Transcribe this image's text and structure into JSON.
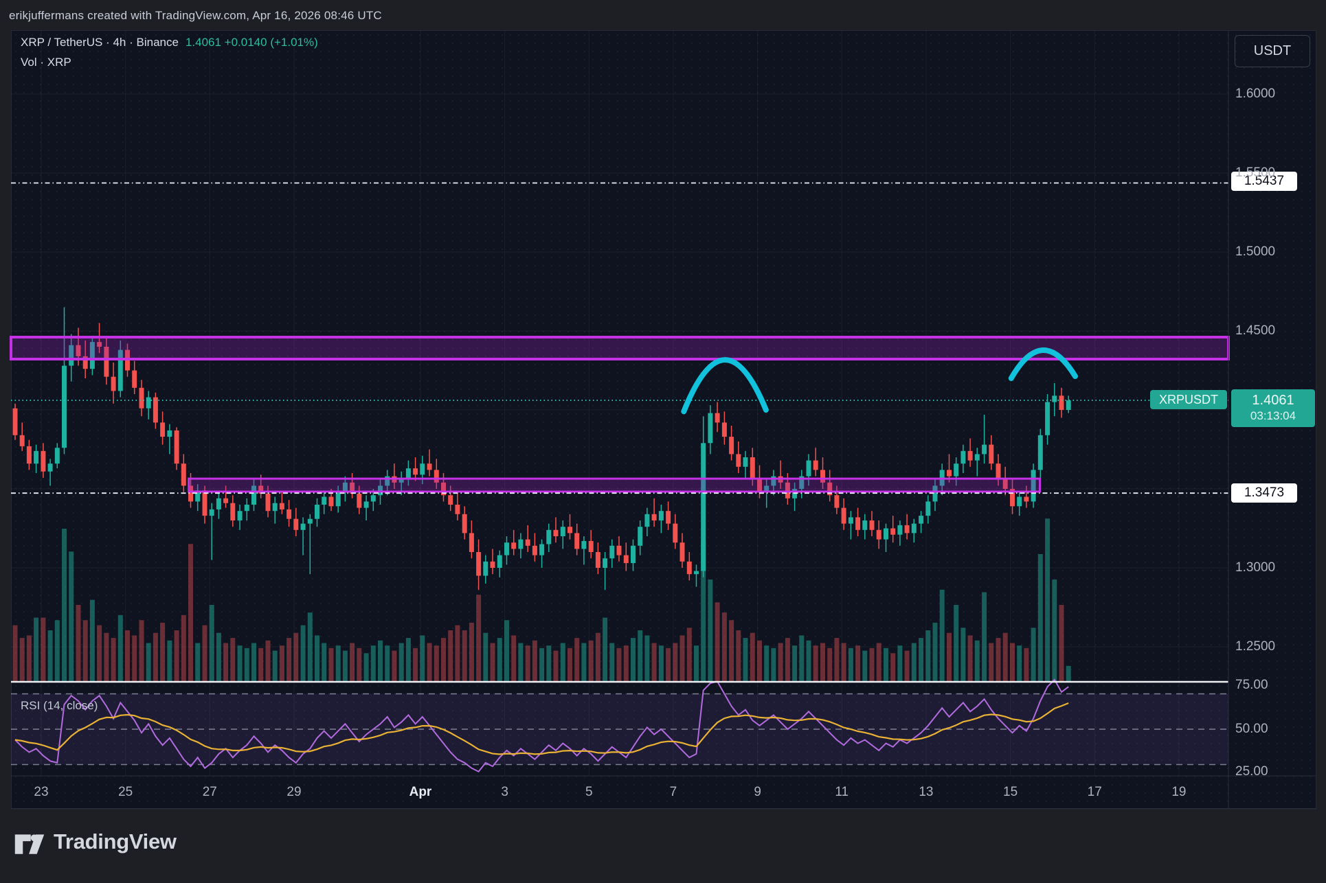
{
  "attribution": "erikjuffermans created with TradingView.com, Apr 16, 2026 08:46 UTC",
  "header": {
    "symbol_line": "XRP / TetherUS · 4h · Binance",
    "price": "1.4061",
    "change": "+0.0140 (+1.01%)",
    "indicator_line": "Vol · XRP"
  },
  "axis": {
    "currency_button": "USDT",
    "price_ticks": [
      [
        "1.6000",
        1.6
      ],
      [
        "1.5500",
        1.55
      ],
      [
        "1.5000",
        1.5
      ],
      [
        "1.4500",
        1.45
      ],
      [
        "1.3000",
        1.3
      ],
      [
        "1.2500",
        1.25
      ]
    ],
    "rsi_ticks": [
      [
        "75.00",
        75
      ],
      [
        "50.00",
        50
      ],
      [
        "25.00",
        25
      ]
    ],
    "date_ticks": [
      [
        "23",
        0
      ],
      [
        "25",
        2
      ],
      [
        "27",
        4
      ],
      [
        "29",
        6
      ],
      [
        "Apr",
        9
      ],
      [
        "3",
        11
      ],
      [
        "5",
        13
      ],
      [
        "7",
        15
      ],
      [
        "9",
        17
      ],
      [
        "11",
        19
      ],
      [
        "13",
        21
      ],
      [
        "15",
        23
      ],
      [
        "17",
        25
      ],
      [
        "19",
        27
      ]
    ]
  },
  "levels": {
    "lines": [
      {
        "label": "1.5437",
        "price": 1.5437
      },
      {
        "label": "1.3473",
        "price": 1.3473
      }
    ],
    "current": {
      "symbol_label": "XRPUSDT",
      "price_label": "1.4061",
      "countdown": "03:13:04",
      "price": 1.4061
    }
  },
  "rsi_panel": {
    "title": "RSI (14, close)",
    "bands": [
      70,
      50,
      30
    ]
  },
  "logo_text": "TradingView",
  "colors": {
    "up": "#1fb2a0",
    "down": "#f4524e",
    "vol_up": "rgba(34,170,150,0.5)",
    "vol_down": "rgba(222,80,82,0.45)",
    "zone_border": "#c532e6",
    "zone_fill": "rgba(140,35,170,0.32)",
    "arc": "#12c2dc",
    "current_line": "#2ebfae",
    "white_line": "#eceff7",
    "rsi_line": "#b26bde",
    "rsi_ma": "#e9b234",
    "badge": "#22a794"
  },
  "chart_data": {
    "type": "candlestick+volume+rsi",
    "symbol": "XRPUSDT",
    "interval": "4h",
    "price_range_visible": [
      1.25,
      1.6
    ],
    "start_day": -0.62,
    "candles_per_day": 6,
    "zones": [
      {
        "name": "resistance-zone",
        "price_top": 1.4461,
        "price_bottom": 1.4322,
        "day_start": -0.75,
        "day_end": 28.2,
        "full_width": true
      },
      {
        "name": "support-box",
        "price_top": 1.3565,
        "price_bottom": 1.3483,
        "day_start": 3.5,
        "day_end": 23.7,
        "full_width": false
      }
    ],
    "arcs": [
      {
        "d1": 15.25,
        "p1": 1.399,
        "dc": 16.22,
        "pc": 1.4317,
        "d2": 17.2,
        "p2": 1.4
      },
      {
        "d1": 23.02,
        "p1": 1.42,
        "dc": 23.77,
        "pc": 1.4378,
        "d2": 24.54,
        "p2": 1.4213
      }
    ],
    "candles": [
      [
        1.401,
        1.404,
        1.381,
        1.384,
        22
      ],
      [
        1.384,
        1.392,
        1.374,
        1.377,
        17
      ],
      [
        1.377,
        1.381,
        1.362,
        1.366,
        18
      ],
      [
        1.366,
        1.378,
        1.36,
        1.374,
        25
      ],
      [
        1.374,
        1.379,
        1.357,
        1.361,
        25
      ],
      [
        1.361,
        1.369,
        1.352,
        1.366,
        20
      ],
      [
        1.366,
        1.379,
        1.363,
        1.376,
        24
      ],
      [
        1.376,
        1.465,
        1.372,
        1.428,
        60
      ],
      [
        1.428,
        1.448,
        1.418,
        1.441,
        51
      ],
      [
        1.441,
        1.452,
        1.428,
        1.434,
        30
      ],
      [
        1.434,
        1.444,
        1.42,
        1.426,
        24
      ],
      [
        1.426,
        1.447,
        1.422,
        1.443,
        32
      ],
      [
        1.443,
        1.455,
        1.436,
        1.44,
        22
      ],
      [
        1.44,
        1.446,
        1.416,
        1.421,
        19
      ],
      [
        1.421,
        1.43,
        1.404,
        1.412,
        17
      ],
      [
        1.412,
        1.444,
        1.408,
        1.438,
        26
      ],
      [
        1.438,
        1.442,
        1.421,
        1.425,
        20
      ],
      [
        1.425,
        1.431,
        1.41,
        1.414,
        18
      ],
      [
        1.414,
        1.419,
        1.396,
        1.401,
        24
      ],
      [
        1.401,
        1.412,
        1.394,
        1.408,
        15
      ],
      [
        1.408,
        1.411,
        1.388,
        1.392,
        19
      ],
      [
        1.392,
        1.399,
        1.378,
        1.383,
        23
      ],
      [
        1.383,
        1.391,
        1.372,
        1.387,
        16
      ],
      [
        1.387,
        1.389,
        1.362,
        1.366,
        20
      ],
      [
        1.366,
        1.372,
        1.348,
        1.352,
        26
      ],
      [
        1.352,
        1.36,
        1.338,
        1.342,
        54
      ],
      [
        1.342,
        1.353,
        1.336,
        1.349,
        15
      ],
      [
        1.349,
        1.352,
        1.328,
        1.333,
        22
      ],
      [
        1.333,
        1.341,
        1.305,
        1.337,
        30
      ],
      [
        1.337,
        1.348,
        1.331,
        1.344,
        19
      ],
      [
        1.344,
        1.352,
        1.338,
        1.341,
        15
      ],
      [
        1.341,
        1.346,
        1.326,
        1.33,
        17
      ],
      [
        1.33,
        1.34,
        1.324,
        1.336,
        14
      ],
      [
        1.336,
        1.344,
        1.33,
        1.34,
        13
      ],
      [
        1.34,
        1.356,
        1.336,
        1.352,
        15
      ],
      [
        1.352,
        1.359,
        1.344,
        1.347,
        13
      ],
      [
        1.347,
        1.352,
        1.332,
        1.336,
        16
      ],
      [
        1.336,
        1.345,
        1.328,
        1.341,
        12
      ],
      [
        1.341,
        1.348,
        1.334,
        1.337,
        14
      ],
      [
        1.337,
        1.343,
        1.326,
        1.331,
        17
      ],
      [
        1.331,
        1.338,
        1.32,
        1.324,
        19
      ],
      [
        1.324,
        1.332,
        1.308,
        1.328,
        22
      ],
      [
        1.328,
        1.334,
        1.296,
        1.331,
        27
      ],
      [
        1.331,
        1.344,
        1.326,
        1.34,
        18
      ],
      [
        1.34,
        1.349,
        1.334,
        1.345,
        15
      ],
      [
        1.345,
        1.35,
        1.336,
        1.339,
        13
      ],
      [
        1.339,
        1.352,
        1.335,
        1.348,
        14
      ],
      [
        1.348,
        1.358,
        1.342,
        1.354,
        12
      ],
      [
        1.354,
        1.36,
        1.344,
        1.347,
        15
      ],
      [
        1.347,
        1.352,
        1.334,
        1.338,
        13
      ],
      [
        1.338,
        1.346,
        1.33,
        1.342,
        11
      ],
      [
        1.342,
        1.35,
        1.336,
        1.346,
        14
      ],
      [
        1.346,
        1.356,
        1.34,
        1.352,
        16
      ],
      [
        1.352,
        1.362,
        1.346,
        1.358,
        14
      ],
      [
        1.358,
        1.366,
        1.35,
        1.354,
        12
      ],
      [
        1.354,
        1.361,
        1.346,
        1.357,
        15
      ],
      [
        1.357,
        1.368,
        1.352,
        1.363,
        17
      ],
      [
        1.363,
        1.37,
        1.355,
        1.359,
        13
      ],
      [
        1.359,
        1.371,
        1.353,
        1.366,
        18
      ],
      [
        1.366,
        1.375,
        1.358,
        1.362,
        15
      ],
      [
        1.362,
        1.369,
        1.35,
        1.354,
        14
      ],
      [
        1.354,
        1.36,
        1.342,
        1.346,
        17
      ],
      [
        1.346,
        1.352,
        1.336,
        1.34,
        20
      ],
      [
        1.34,
        1.347,
        1.33,
        1.334,
        22
      ],
      [
        1.334,
        1.339,
        1.318,
        1.322,
        20
      ],
      [
        1.322,
        1.33,
        1.306,
        1.31,
        23
      ],
      [
        1.31,
        1.318,
        1.286,
        1.295,
        34
      ],
      [
        1.295,
        1.308,
        1.29,
        1.304,
        19
      ],
      [
        1.304,
        1.312,
        1.296,
        1.3,
        15
      ],
      [
        1.3,
        1.311,
        1.294,
        1.308,
        17
      ],
      [
        1.308,
        1.32,
        1.302,
        1.316,
        24
      ],
      [
        1.316,
        1.324,
        1.308,
        1.312,
        18
      ],
      [
        1.312,
        1.322,
        1.306,
        1.318,
        15
      ],
      [
        1.318,
        1.327,
        1.31,
        1.314,
        14
      ],
      [
        1.314,
        1.322,
        1.304,
        1.308,
        16
      ],
      [
        1.308,
        1.318,
        1.3,
        1.315,
        13
      ],
      [
        1.315,
        1.328,
        1.31,
        1.324,
        14
      ],
      [
        1.324,
        1.332,
        1.316,
        1.32,
        12
      ],
      [
        1.32,
        1.33,
        1.312,
        1.326,
        15
      ],
      [
        1.326,
        1.334,
        1.318,
        1.322,
        13
      ],
      [
        1.322,
        1.328,
        1.308,
        1.312,
        17
      ],
      [
        1.312,
        1.32,
        1.302,
        1.317,
        15
      ],
      [
        1.317,
        1.324,
        1.306,
        1.31,
        16
      ],
      [
        1.31,
        1.316,
        1.296,
        1.3,
        19
      ],
      [
        1.3,
        1.31,
        1.286,
        1.306,
        25
      ],
      [
        1.306,
        1.318,
        1.3,
        1.314,
        15
      ],
      [
        1.314,
        1.32,
        1.304,
        1.308,
        13
      ],
      [
        1.308,
        1.316,
        1.298,
        1.303,
        14
      ],
      [
        1.303,
        1.318,
        1.298,
        1.314,
        17
      ],
      [
        1.314,
        1.33,
        1.308,
        1.326,
        20
      ],
      [
        1.326,
        1.338,
        1.32,
        1.334,
        18
      ],
      [
        1.334,
        1.344,
        1.326,
        1.33,
        15
      ],
      [
        1.33,
        1.34,
        1.322,
        1.336,
        14
      ],
      [
        1.336,
        1.342,
        1.324,
        1.328,
        13
      ],
      [
        1.328,
        1.334,
        1.312,
        1.316,
        15
      ],
      [
        1.316,
        1.322,
        1.3,
        1.304,
        18
      ],
      [
        1.304,
        1.31,
        1.292,
        1.296,
        21
      ],
      [
        1.296,
        1.302,
        1.288,
        1.298,
        14
      ],
      [
        1.298,
        1.396,
        1.294,
        1.379,
        55
      ],
      [
        1.379,
        1.403,
        1.372,
        1.398,
        40
      ],
      [
        1.398,
        1.405,
        1.386,
        1.392,
        31
      ],
      [
        1.392,
        1.399,
        1.378,
        1.383,
        27
      ],
      [
        1.383,
        1.39,
        1.368,
        1.372,
        24
      ],
      [
        1.372,
        1.38,
        1.36,
        1.364,
        20
      ],
      [
        1.364,
        1.374,
        1.356,
        1.37,
        17
      ],
      [
        1.37,
        1.376,
        1.352,
        1.357,
        19
      ],
      [
        1.357,
        1.365,
        1.344,
        1.348,
        16
      ],
      [
        1.348,
        1.356,
        1.338,
        1.352,
        14
      ],
      [
        1.352,
        1.362,
        1.346,
        1.358,
        13
      ],
      [
        1.358,
        1.368,
        1.35,
        1.354,
        15
      ],
      [
        1.354,
        1.36,
        1.34,
        1.344,
        17
      ],
      [
        1.344,
        1.354,
        1.336,
        1.35,
        14
      ],
      [
        1.35,
        1.362,
        1.344,
        1.358,
        18
      ],
      [
        1.358,
        1.372,
        1.352,
        1.368,
        16
      ],
      [
        1.368,
        1.376,
        1.358,
        1.362,
        14
      ],
      [
        1.362,
        1.37,
        1.35,
        1.354,
        15
      ],
      [
        1.354,
        1.362,
        1.342,
        1.346,
        13
      ],
      [
        1.346,
        1.352,
        1.334,
        1.338,
        17
      ],
      [
        1.338,
        1.344,
        1.324,
        1.328,
        15
      ],
      [
        1.328,
        1.336,
        1.318,
        1.332,
        13
      ],
      [
        1.332,
        1.338,
        1.32,
        1.324,
        14
      ],
      [
        1.324,
        1.334,
        1.318,
        1.33,
        12
      ],
      [
        1.33,
        1.336,
        1.32,
        1.324,
        13
      ],
      [
        1.324,
        1.33,
        1.312,
        1.318,
        15
      ],
      [
        1.318,
        1.328,
        1.31,
        1.325,
        13
      ],
      [
        1.325,
        1.333,
        1.316,
        1.321,
        11
      ],
      [
        1.321,
        1.33,
        1.314,
        1.327,
        14
      ],
      [
        1.327,
        1.334,
        1.318,
        1.322,
        12
      ],
      [
        1.322,
        1.331,
        1.316,
        1.328,
        15
      ],
      [
        1.328,
        1.336,
        1.322,
        1.333,
        17
      ],
      [
        1.333,
        1.346,
        1.328,
        1.342,
        20
      ],
      [
        1.342,
        1.356,
        1.336,
        1.352,
        23
      ],
      [
        1.352,
        1.366,
        1.346,
        1.362,
        36
      ],
      [
        1.362,
        1.372,
        1.354,
        1.358,
        19
      ],
      [
        1.358,
        1.37,
        1.352,
        1.366,
        30
      ],
      [
        1.366,
        1.378,
        1.36,
        1.374,
        21
      ],
      [
        1.374,
        1.382,
        1.364,
        1.368,
        18
      ],
      [
        1.368,
        1.376,
        1.358,
        1.372,
        16
      ],
      [
        1.372,
        1.397,
        1.366,
        1.378,
        35
      ],
      [
        1.378,
        1.384,
        1.362,
        1.366,
        15
      ],
      [
        1.366,
        1.372,
        1.352,
        1.356,
        17
      ],
      [
        1.356,
        1.364,
        1.346,
        1.35,
        19
      ],
      [
        1.35,
        1.356,
        1.334,
        1.339,
        15
      ],
      [
        1.339,
        1.348,
        1.333,
        1.345,
        14
      ],
      [
        1.345,
        1.352,
        1.338,
        1.342,
        13
      ],
      [
        1.342,
        1.366,
        1.338,
        1.362,
        21
      ],
      [
        1.362,
        1.388,
        1.356,
        1.384,
        50
      ],
      [
        1.384,
        1.41,
        1.378,
        1.405,
        64
      ],
      [
        1.405,
        1.417,
        1.396,
        1.409,
        40
      ],
      [
        1.409,
        1.414,
        1.395,
        1.4,
        30
      ],
      [
        1.4,
        1.409,
        1.398,
        1.406,
        6
      ]
    ],
    "rsi": [
      44,
      40,
      37,
      39,
      35,
      32,
      31,
      64,
      69,
      66,
      61,
      66,
      69,
      63,
      56,
      65,
      60,
      55,
      48,
      53,
      46,
      41,
      45,
      39,
      33,
      29,
      34,
      28,
      31,
      36,
      39,
      34,
      38,
      41,
      46,
      42,
      37,
      41,
      38,
      34,
      31,
      36,
      39,
      45,
      49,
      45,
      49,
      53,
      48,
      43,
      47,
      50,
      53,
      57,
      51,
      54,
      58,
      53,
      57,
      52,
      47,
      42,
      37,
      33,
      31,
      28,
      24,
      31,
      29,
      34,
      38,
      35,
      39,
      36,
      33,
      37,
      41,
      38,
      42,
      39,
      35,
      39,
      36,
      32,
      36,
      40,
      37,
      34,
      40,
      46,
      51,
      47,
      50,
      46,
      42,
      38,
      34,
      36,
      72,
      76,
      77,
      70,
      63,
      58,
      61,
      55,
      52,
      55,
      58,
      54,
      50,
      53,
      56,
      60,
      56,
      52,
      48,
      44,
      41,
      45,
      42,
      44,
      41,
      38,
      42,
      40,
      44,
      42,
      45,
      48,
      52,
      57,
      62,
      57,
      61,
      65,
      60,
      63,
      67,
      61,
      56,
      52,
      48,
      52,
      49,
      56,
      66,
      74,
      78,
      71,
      74
    ]
  }
}
